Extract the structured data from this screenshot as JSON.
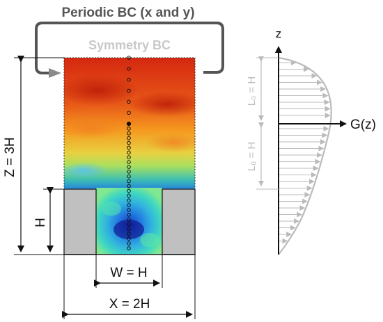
{
  "labels": {
    "periodic_bc": "Periodic BC (x and y)",
    "symmetry_bc": "Symmetry BC",
    "z_extent": "Z = 3H",
    "h": "H",
    "w": "W = H",
    "x_extent": "X = 2H",
    "z_axis": "z",
    "g_axis": "G(z)",
    "l0_upper": "L₀ = H",
    "l0_lower": "L₀ = H"
  },
  "colors": {
    "dark_grey": "#555555",
    "light_grey": "#c8c8c8",
    "block_fill": "#c0c0c0",
    "arrow_grey": "#bbbbbb",
    "field_hot": "#d62a10",
    "field_cold": "#1040d0"
  }
}
